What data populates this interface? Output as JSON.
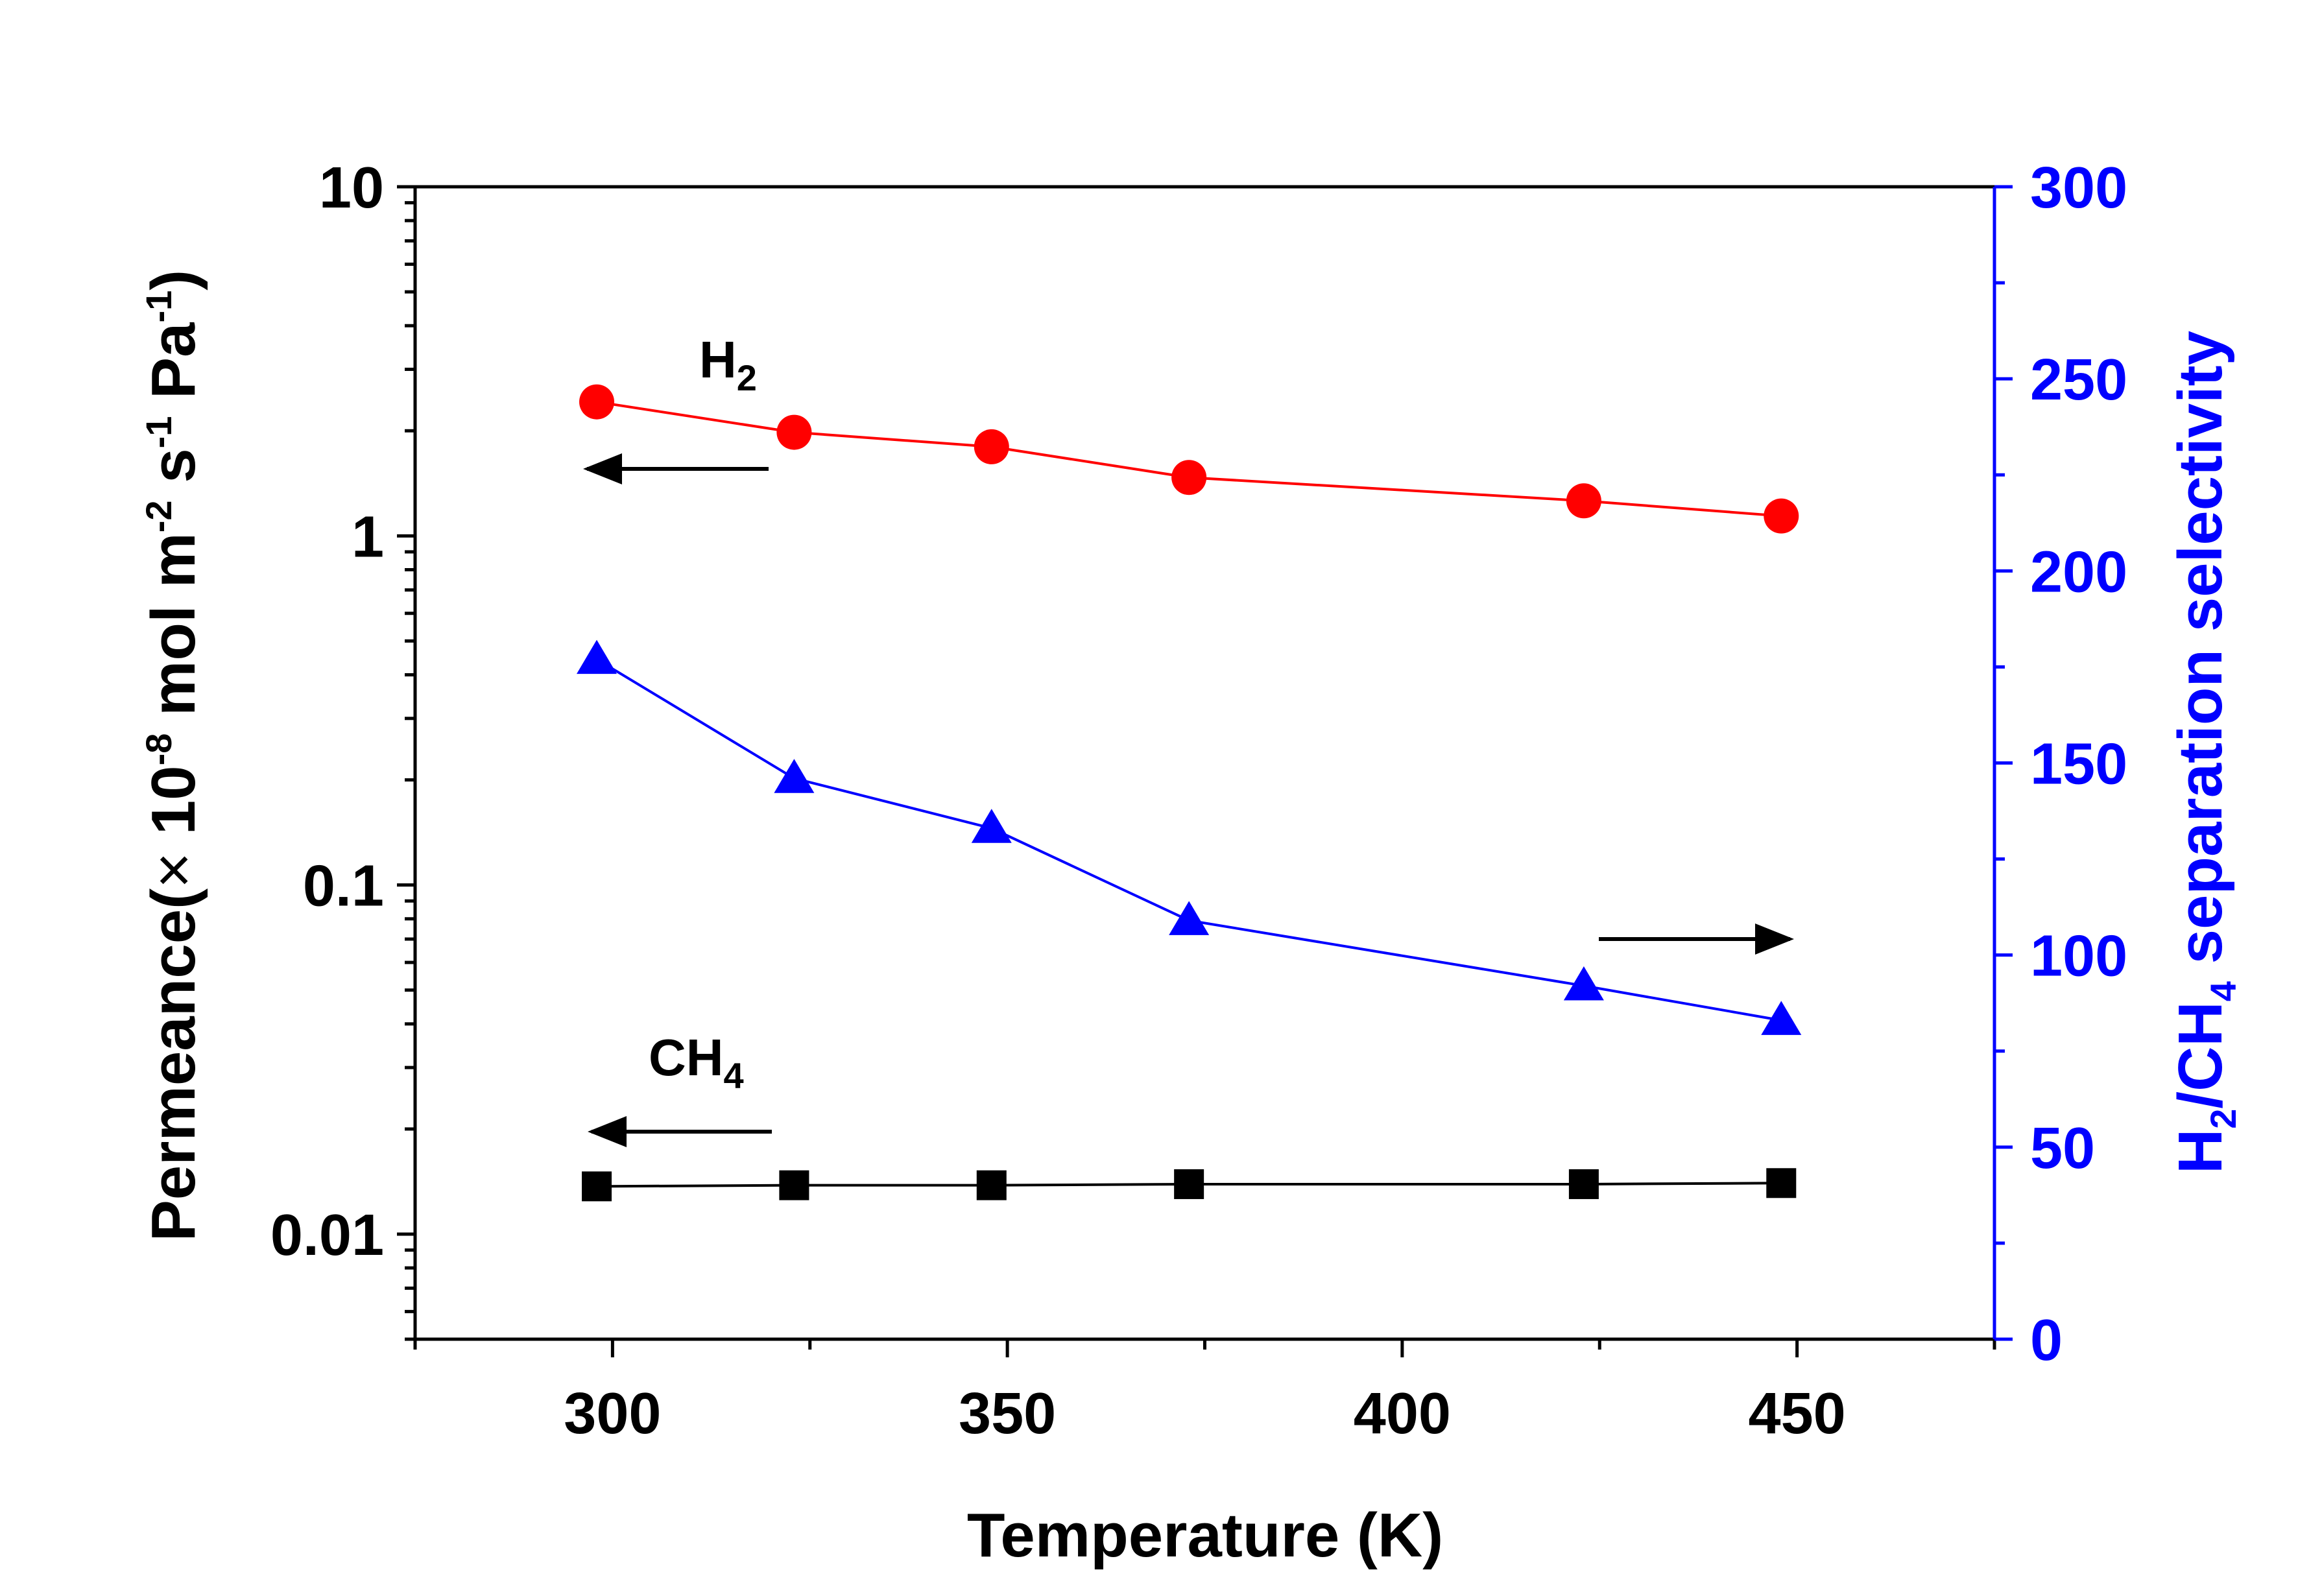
{
  "chart_data": {
    "type": "line",
    "title": "",
    "xlabel": "Temperature (K)",
    "ylabel_left": {
      "prefix": "Permeance(",
      "times": "×",
      "mantissa": " 10",
      "exp1": "-8",
      "unit1": " mol m",
      "exp2": "-2",
      "unit2": " s",
      "exp3": "-1",
      "unit3": " Pa",
      "exp4": "-1",
      "suffix": ")"
    },
    "ylabel_right": {
      "part1": "H",
      "sub1": "2",
      "part2": "/CH",
      "sub2": "4",
      "part3": " separation selectivity"
    },
    "xlim": [
      275,
      475
    ],
    "ylim_left": [
      0.005,
      10
    ],
    "ylim_right": [
      0,
      300
    ],
    "x_ticks": [
      300,
      350,
      400,
      450
    ],
    "x_tick_labels": [
      "300",
      "350",
      "400",
      "450"
    ],
    "y_left_ticks": [
      0.01,
      0.1,
      1,
      10
    ],
    "y_left_tick_labels": [
      "0.01",
      "0.1",
      "1",
      "10"
    ],
    "y_right_ticks": [
      0,
      50,
      100,
      150,
      200,
      250,
      300
    ],
    "y_right_tick_labels": [
      "0",
      "50",
      "100",
      "150",
      "200",
      "250",
      "300"
    ],
    "x": [
      298,
      323,
      348,
      373,
      423,
      448
    ],
    "series": [
      {
        "name": "H2",
        "axis": "left",
        "marker": "circle",
        "color": "#ff0000",
        "values": [
          2.42,
          1.98,
          1.8,
          1.47,
          1.26,
          1.14
        ]
      },
      {
        "name": "CH4",
        "axis": "left",
        "marker": "square",
        "color": "#000000",
        "values": [
          0.0137,
          0.0138,
          0.0138,
          0.0139,
          0.0139,
          0.014
        ]
      },
      {
        "name": "H2/CH4 selectivity",
        "axis": "right",
        "marker": "triangle",
        "color": "#0000ff",
        "values": [
          177,
          146,
          133,
          109,
          92,
          83
        ]
      }
    ],
    "annotations": [
      {
        "id": "h2",
        "main": "H",
        "sub": "2"
      },
      {
        "id": "ch4",
        "main": "CH",
        "sub": "4"
      }
    ],
    "arrows": [
      {
        "for": "H2",
        "direction": "left"
      },
      {
        "for": "CH4",
        "direction": "left"
      },
      {
        "for": "selectivity",
        "direction": "right"
      }
    ],
    "colors": {
      "axis": "#000000",
      "right_axis": "#0000ff"
    }
  }
}
